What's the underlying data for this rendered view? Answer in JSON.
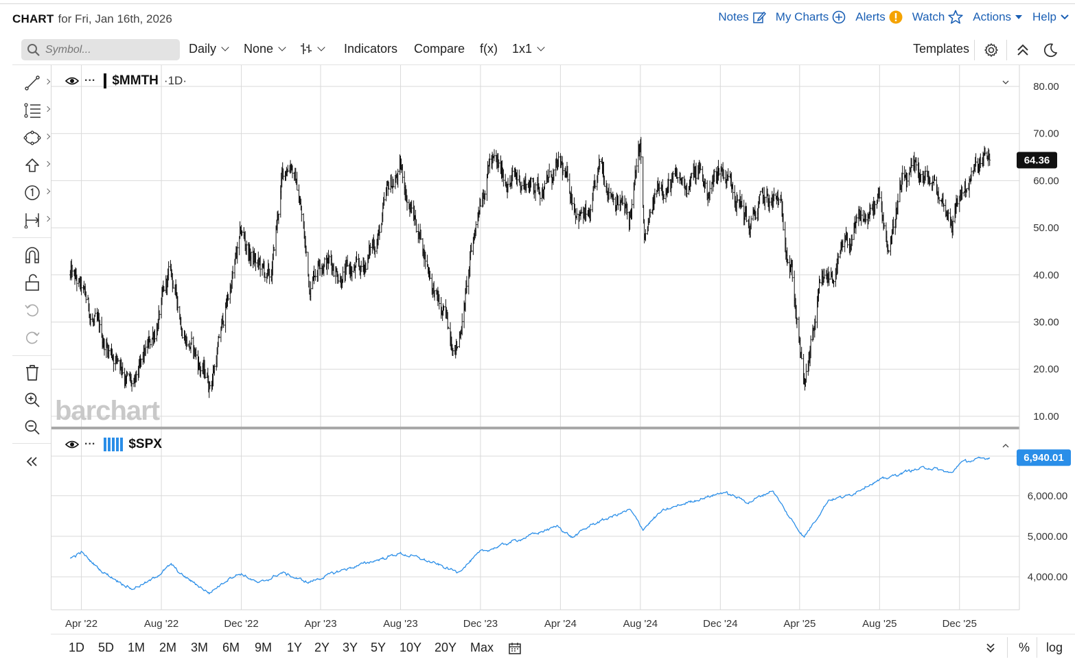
{
  "header": {
    "brand": "CHART",
    "date_text": "for Fri, Jan 16th, 2026",
    "links": [
      {
        "label": "Notes",
        "icon": "edit-icon"
      },
      {
        "label": "My Charts",
        "icon": "plus-circle-icon"
      },
      {
        "label": "Alerts",
        "icon": "alert-badge-icon"
      },
      {
        "label": "Watch",
        "icon": "star-icon"
      },
      {
        "label": "Actions",
        "icon": "caret-down-icon"
      },
      {
        "label": "Help",
        "icon": "chevron-down-icon"
      }
    ]
  },
  "toolbar": {
    "search_placeholder": "Symbol...",
    "interval": "Daily",
    "overlay": "None",
    "indicators": "Indicators",
    "compare": "Compare",
    "fx": "f(x)",
    "layout": "1x1",
    "templates": "Templates"
  },
  "left_tools": [
    "line-draw-icon",
    "fib-levels-icon",
    "shapes-icon",
    "arrow-up-icon",
    "numbered-marker-icon",
    "measure-icon",
    "magnet-icon",
    "unlock-icon",
    "undo-icon",
    "redo-icon",
    "trash-icon",
    "zoom-in-icon",
    "zoom-out-icon",
    "collapse-left-icon"
  ],
  "bottom": {
    "ranges": [
      "1D",
      "5D",
      "1M",
      "2M",
      "3M",
      "6M",
      "9M",
      "1Y",
      "2Y",
      "3Y",
      "5Y",
      "10Y",
      "20Y",
      "Max"
    ],
    "percent": "%",
    "log": "log"
  },
  "watermark": "barchart",
  "colors": {
    "price_bars": "#111111",
    "spx_line": "#2a8ee8",
    "link": "#1a5fb4",
    "last_price_bg": "#111111",
    "spx_last_bg": "#2a8ee8",
    "alert_badge": "#f5a300"
  },
  "chart_data": [
    {
      "type": "ohlc",
      "symbol": "$MMTH",
      "interval": "1D",
      "last_value_label": "64.36",
      "y_ticks": [
        "80.00",
        "70.00",
        "60.00",
        "50.00",
        "40.00",
        "30.00",
        "20.00",
        "10.00"
      ],
      "ylim": [
        8,
        81
      ],
      "x_ticks": [
        "Apr '22",
        "Aug '22",
        "Dec '22",
        "Apr '23",
        "Aug '23",
        "Dec '23",
        "Apr '24",
        "Aug '24",
        "Dec '24",
        "Apr '25",
        "Aug '25",
        "Dec '25"
      ],
      "x": [
        "2022-03-15",
        "2022-04-01",
        "2022-05-01",
        "2022-06-01",
        "2022-06-20",
        "2022-07-15",
        "2022-08-15",
        "2022-09-01",
        "2022-10-01",
        "2022-10-15",
        "2022-11-15",
        "2022-12-01",
        "2022-12-15",
        "2023-01-15",
        "2023-02-01",
        "2023-02-15",
        "2023-03-01",
        "2023-03-15",
        "2023-04-01",
        "2023-05-01",
        "2023-06-01",
        "2023-07-01",
        "2023-07-15",
        "2023-08-01",
        "2023-08-15",
        "2023-09-01",
        "2023-10-01",
        "2023-10-27",
        "2023-11-15",
        "2023-12-01",
        "2023-12-15",
        "2024-01-01",
        "2024-02-01",
        "2024-03-01",
        "2024-04-01",
        "2024-04-20",
        "2024-05-15",
        "2024-06-01",
        "2024-07-01",
        "2024-07-15",
        "2024-08-01",
        "2024-08-07",
        "2024-09-01",
        "2024-10-01",
        "2024-11-01",
        "2024-11-10",
        "2024-12-01",
        "2024-12-20",
        "2025-01-15",
        "2025-02-01",
        "2025-03-01",
        "2025-03-20",
        "2025-04-08",
        "2025-05-01",
        "2025-06-01",
        "2025-07-01",
        "2025-08-01",
        "2025-08-15",
        "2025-09-01",
        "2025-10-01",
        "2025-10-20",
        "2025-11-20",
        "2025-12-01",
        "2025-12-20",
        "2026-01-16"
      ],
      "close": [
        40,
        36,
        26,
        22,
        15,
        25,
        40,
        30,
        20,
        17,
        38,
        48,
        44,
        38,
        60,
        65,
        55,
        38,
        45,
        41,
        40,
        50,
        58,
        62,
        55,
        48,
        32,
        25,
        42,
        57,
        65,
        61,
        60,
        59,
        62,
        56,
        51,
        62,
        56,
        51,
        67,
        46,
        60,
        59,
        62,
        57,
        63,
        60,
        50,
        55,
        55,
        42,
        15,
        35,
        43,
        50,
        55,
        46,
        58,
        61,
        59,
        52,
        57,
        61,
        64.36
      ]
    },
    {
      "type": "line",
      "symbol": "$SPX",
      "last_value_label": "6,940.01",
      "y_ticks": [
        "6,000.00",
        "5,000.00",
        "4,000.00"
      ],
      "ylim": [
        3200,
        7000
      ],
      "x": [
        "2022-03-15",
        "2022-04-01",
        "2022-05-01",
        "2022-06-17",
        "2022-07-15",
        "2022-08-16",
        "2022-09-01",
        "2022-10-13",
        "2022-11-15",
        "2022-12-01",
        "2022-12-28",
        "2023-02-01",
        "2023-03-13",
        "2023-05-01",
        "2023-07-31",
        "2023-09-01",
        "2023-10-27",
        "2023-12-01",
        "2024-01-01",
        "2024-03-28",
        "2024-04-19",
        "2024-05-20",
        "2024-07-16",
        "2024-08-05",
        "2024-09-01",
        "2024-10-15",
        "2024-12-06",
        "2025-01-13",
        "2025-02-19",
        "2025-03-13",
        "2025-04-08",
        "2025-05-15",
        "2025-06-15",
        "2025-07-15",
        "2025-08-15",
        "2025-09-15",
        "2025-10-15",
        "2025-11-20",
        "2025-12-01",
        "2026-01-16"
      ],
      "close": [
        4450,
        4600,
        4150,
        3700,
        3900,
        4300,
        4050,
        3600,
        4000,
        4080,
        3830,
        4100,
        3860,
        4150,
        4580,
        4450,
        4120,
        4600,
        4770,
        5250,
        4970,
        5300,
        5650,
        5180,
        5600,
        5850,
        6090,
        5840,
        6140,
        5550,
        4980,
        5900,
        6000,
        6280,
        6450,
        6620,
        6700,
        6550,
        6820,
        6940.01
      ]
    }
  ]
}
